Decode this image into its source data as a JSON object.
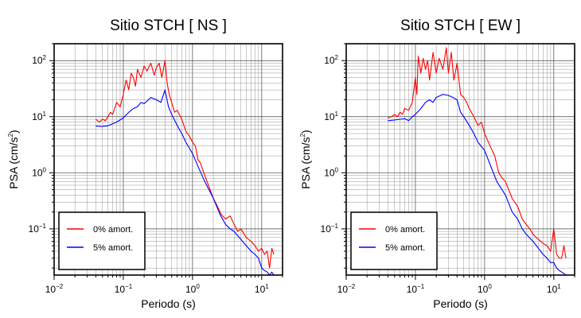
{
  "chart_data": [
    {
      "type": "line",
      "title": "Sitio STCH [ NS ]",
      "xlabel": "Periodo (s)",
      "ylabel_main": "PSA (cm/s",
      "ylabel_sup": "2",
      "ylabel_end": ")",
      "xscale": "log",
      "yscale": "log",
      "xlim": [
        0.01,
        20
      ],
      "ylim": [
        0.015,
        200
      ],
      "grid": true,
      "legend_position": "bottom-left",
      "xticks": [
        {
          "value": 0.01,
          "base": "10",
          "exp": "−2"
        },
        {
          "value": 0.1,
          "base": "10",
          "exp": "−1"
        },
        {
          "value": 1,
          "base": "10",
          "exp": "0"
        },
        {
          "value": 10,
          "base": "10",
          "exp": "1"
        }
      ],
      "yticks": [
        {
          "value": 0.1,
          "base": "10",
          "exp": "−1"
        },
        {
          "value": 1,
          "base": "10",
          "exp": "0"
        },
        {
          "value": 10,
          "base": "10",
          "exp": "1"
        },
        {
          "value": 100,
          "base": "10",
          "exp": "2"
        }
      ],
      "series": [
        {
          "name": "0% amort.",
          "color": "#ff0000",
          "x": [
            0.04,
            0.045,
            0.05,
            0.055,
            0.06,
            0.065,
            0.07,
            0.075,
            0.08,
            0.09,
            0.1,
            0.11,
            0.12,
            0.13,
            0.14,
            0.15,
            0.16,
            0.18,
            0.2,
            0.22,
            0.25,
            0.28,
            0.3,
            0.33,
            0.36,
            0.4,
            0.43,
            0.46,
            0.5,
            0.55,
            0.6,
            0.7,
            0.8,
            0.9,
            1.0,
            1.1,
            1.2,
            1.3,
            1.5,
            1.7,
            2.0,
            2.3,
            2.6,
            3.0,
            3.5,
            4.0,
            4.5,
            5.0,
            6.0,
            7.0,
            8.0,
            9.0,
            10.0,
            11.0,
            12.0,
            13.0,
            14.0,
            15.0
          ],
          "y": [
            9,
            8,
            9,
            8.5,
            10,
            12,
            11,
            14,
            18,
            15,
            25,
            45,
            30,
            60,
            50,
            35,
            70,
            50,
            80,
            65,
            90,
            55,
            75,
            90,
            50,
            100,
            40,
            25,
            18,
            12,
            13,
            9,
            5.5,
            4.5,
            3.5,
            3.0,
            1.7,
            1.5,
            0.9,
            0.6,
            0.35,
            0.25,
            0.18,
            0.15,
            0.17,
            0.12,
            0.09,
            0.1,
            0.07,
            0.06,
            0.05,
            0.04,
            0.045,
            0.035,
            0.04,
            0.02,
            0.045,
            0.035
          ]
        },
        {
          "name": "5% amort.",
          "color": "#0000ff",
          "x": [
            0.04,
            0.05,
            0.06,
            0.07,
            0.08,
            0.1,
            0.12,
            0.14,
            0.16,
            0.18,
            0.2,
            0.25,
            0.3,
            0.35,
            0.4,
            0.45,
            0.5,
            0.6,
            0.7,
            0.8,
            1.0,
            1.2,
            1.5,
            2.0,
            2.5,
            3.0,
            3.5,
            4.0,
            5.0,
            6.0,
            7.0,
            8.0,
            9.0,
            10.0,
            11.0,
            12.0,
            13.0,
            14.0,
            15.0
          ],
          "y": [
            6.8,
            6.7,
            6.9,
            7.5,
            8,
            9.5,
            12,
            14,
            15,
            18,
            17,
            22,
            20,
            18,
            30,
            15,
            11,
            7,
            5,
            3.5,
            2.2,
            1.3,
            0.7,
            0.35,
            0.18,
            0.12,
            0.1,
            0.09,
            0.065,
            0.05,
            0.04,
            0.035,
            0.03,
            0.02,
            0.018,
            0.017,
            0.015,
            0.017,
            0.015
          ]
        }
      ]
    },
    {
      "type": "line",
      "title": "Sitio STCH [ EW ]",
      "xlabel": "Periodo (s)",
      "ylabel_main": "PSA (cm/s",
      "ylabel_sup": "2",
      "ylabel_end": ")",
      "xscale": "log",
      "yscale": "log",
      "xlim": [
        0.01,
        20
      ],
      "ylim": [
        0.015,
        200
      ],
      "grid": true,
      "legend_position": "bottom-left",
      "xticks": [
        {
          "value": 0.01,
          "base": "10",
          "exp": "−2"
        },
        {
          "value": 0.1,
          "base": "10",
          "exp": "−1"
        },
        {
          "value": 1,
          "base": "10",
          "exp": "0"
        },
        {
          "value": 10,
          "base": "10",
          "exp": "1"
        }
      ],
      "yticks": [
        {
          "value": 0.1,
          "base": "10",
          "exp": "−1"
        },
        {
          "value": 1,
          "base": "10",
          "exp": "0"
        },
        {
          "value": 10,
          "base": "10",
          "exp": "1"
        },
        {
          "value": 100,
          "base": "10",
          "exp": "2"
        }
      ],
      "series": [
        {
          "name": "0% amort.",
          "color": "#ff0000",
          "x": [
            0.04,
            0.045,
            0.05,
            0.055,
            0.06,
            0.065,
            0.07,
            0.08,
            0.09,
            0.1,
            0.105,
            0.11,
            0.12,
            0.13,
            0.14,
            0.15,
            0.16,
            0.18,
            0.2,
            0.22,
            0.25,
            0.28,
            0.3,
            0.33,
            0.36,
            0.4,
            0.45,
            0.5,
            0.55,
            0.6,
            0.7,
            0.8,
            0.9,
            1.0,
            1.2,
            1.4,
            1.6,
            1.8,
            2.0,
            2.5,
            3.0,
            3.5,
            4.0,
            4.5,
            5.0,
            6.0,
            7.0,
            8.0,
            9.0,
            10.0,
            11.0,
            12.0,
            13.0,
            14.0,
            15.0
          ],
          "y": [
            9.5,
            10,
            11,
            10,
            12,
            11,
            14,
            13,
            18,
            50,
            25,
            120,
            60,
            110,
            70,
            100,
            45,
            140,
            60,
            110,
            70,
            170,
            60,
            140,
            45,
            90,
            25,
            22,
            18,
            14,
            10,
            7,
            8,
            5,
            3,
            2.0,
            1.0,
            0.8,
            0.7,
            0.35,
            0.25,
            0.15,
            0.12,
            0.1,
            0.08,
            0.065,
            0.055,
            0.05,
            0.04,
            0.1,
            0.035,
            0.03,
            0.03,
            0.05,
            0.03
          ]
        },
        {
          "name": "5% amort.",
          "color": "#0000ff",
          "x": [
            0.04,
            0.05,
            0.06,
            0.07,
            0.08,
            0.09,
            0.1,
            0.12,
            0.14,
            0.16,
            0.18,
            0.2,
            0.25,
            0.3,
            0.35,
            0.4,
            0.45,
            0.5,
            0.6,
            0.7,
            0.8,
            1.0,
            1.2,
            1.5,
            2.0,
            2.5,
            3.0,
            3.5,
            4.0,
            5.0,
            6.0,
            7.0,
            8.0,
            9.0,
            10.0,
            11.0,
            12.0,
            13.0,
            14.0,
            15.0
          ],
          "y": [
            8.5,
            8.7,
            9,
            9.2,
            8.5,
            10,
            11,
            14,
            18,
            20,
            18,
            22,
            25,
            24,
            22,
            20,
            12,
            10,
            7,
            5,
            3.5,
            2.5,
            1.4,
            0.7,
            0.4,
            0.2,
            0.15,
            0.1,
            0.08,
            0.06,
            0.045,
            0.035,
            0.03,
            0.025,
            0.025,
            0.02,
            0.018,
            0.017,
            0.016,
            0.015
          ]
        }
      ]
    }
  ]
}
